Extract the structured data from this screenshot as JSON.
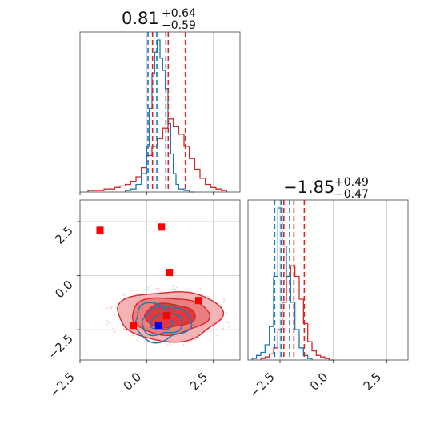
{
  "colors": {
    "red": "#d62728",
    "blue": "#1f77b4",
    "red_fill_outer": "#f4b3b4",
    "red_fill_inner": "#e03a3c",
    "marker_red": "#ff0000",
    "marker_blue": "#0000ff",
    "grid": "#c8c8c8"
  },
  "chart_data": [
    {
      "type": "histogram",
      "panel": "param1-marginal",
      "title_value": "0.81",
      "title_upper": "+0.64",
      "title_lower": "−0.59",
      "xlim": [
        -2.5,
        3.5
      ],
      "grid": true,
      "series": [
        {
          "color": "#d62728",
          "bins": [
            -2.2,
            -2.0,
            -1.8,
            -1.6,
            -1.4,
            -1.2,
            -1.0,
            -0.8,
            -0.6,
            -0.4,
            -0.2,
            0.0,
            0.2,
            0.4,
            0.6,
            0.8,
            1.0,
            1.2,
            1.4,
            1.6,
            1.8,
            2.0,
            2.2,
            2.4,
            2.6,
            2.8
          ],
          "heights": [
            0.01,
            0.01,
            0.01,
            0.02,
            0.02,
            0.03,
            0.04,
            0.05,
            0.07,
            0.1,
            0.16,
            0.24,
            0.3,
            0.35,
            0.42,
            0.48,
            0.43,
            0.38,
            0.3,
            0.22,
            0.15,
            0.09,
            0.05,
            0.03,
            0.02,
            0.01
          ],
          "quantile_lines": [
            0.22,
            0.81,
            1.45
          ]
        },
        {
          "color": "#1f77b4",
          "bins": [
            -0.8,
            -0.6,
            -0.4,
            -0.2,
            0.0,
            0.1,
            0.2,
            0.3,
            0.4,
            0.5,
            0.6,
            0.7,
            0.8,
            0.9,
            1.0,
            1.1,
            1.2,
            1.4,
            1.6
          ],
          "heights": [
            0.01,
            0.02,
            0.05,
            0.12,
            0.3,
            0.55,
            0.78,
            0.92,
            1.0,
            0.88,
            0.8,
            0.68,
            0.45,
            0.25,
            0.12,
            0.05,
            0.02,
            0.01,
            0.0
          ],
          "quantile_lines": [
            0.05,
            0.38,
            0.72
          ]
        }
      ]
    },
    {
      "type": "histogram",
      "panel": "param2-marginal",
      "title_value": "−1.85",
      "title_upper": "+0.49",
      "title_lower": "−0.47",
      "xlim": [
        -4.0,
        3.5
      ],
      "xticks": [
        -2.5,
        0.0,
        2.5
      ],
      "xtick_labels": [
        "−2.5",
        "0.0",
        "2.5"
      ],
      "grid": true,
      "series": [
        {
          "color": "#d62728",
          "bins": [
            -3.4,
            -3.2,
            -3.0,
            -2.8,
            -2.6,
            -2.4,
            -2.2,
            -2.0,
            -1.8,
            -1.6,
            -1.4,
            -1.2,
            -1.0,
            -0.8,
            -0.6,
            -0.4,
            -0.2
          ],
          "heights": [
            0.01,
            0.02,
            0.04,
            0.08,
            0.2,
            0.38,
            0.55,
            0.62,
            0.55,
            0.4,
            0.24,
            0.12,
            0.06,
            0.03,
            0.02,
            0.01,
            0.0
          ],
          "quantile_lines": [
            -2.32,
            -1.85,
            -1.36
          ]
        },
        {
          "color": "#1f77b4",
          "bins": [
            -3.8,
            -3.6,
            -3.4,
            -3.2,
            -3.0,
            -2.8,
            -2.6,
            -2.4,
            -2.2,
            -2.0,
            -1.8,
            -1.6,
            -1.4,
            -1.2
          ],
          "heights": [
            0.01,
            0.03,
            0.05,
            0.1,
            0.22,
            0.55,
            1.0,
            0.75,
            0.55,
            0.38,
            0.2,
            0.08,
            0.03,
            0.01
          ],
          "quantile_lines": [
            -2.75,
            -2.45,
            -2.05
          ]
        }
      ]
    },
    {
      "type": "scatter",
      "panel": "joint",
      "xlim": [
        -2.5,
        3.5
      ],
      "ylim": [
        -3.9,
        3.5
      ],
      "xticks": [
        -2.5,
        0.0,
        2.5
      ],
      "xtick_labels": [
        "−2.5",
        "0.0",
        "2.5"
      ],
      "yticks": [
        -2.5,
        0.0,
        2.5
      ],
      "ytick_labels": [
        "−2.5",
        "0.0",
        "2.5"
      ],
      "grid": true,
      "red_contours": {
        "center": [
          0.85,
          -1.85
        ],
        "levels": [
          {
            "rx": 1.95,
            "ry": 1.15
          },
          {
            "rx": 1.45,
            "ry": 0.85
          },
          {
            "rx": 0.95,
            "ry": 0.55
          }
        ]
      },
      "blue_contours": {
        "center": [
          0.55,
          -2.15
        ],
        "levels": [
          {
            "rx": 1.05,
            "ry": 0.85
          },
          {
            "rx": 0.75,
            "ry": 0.6
          },
          {
            "rx": 0.4,
            "ry": 0.35
          }
        ]
      },
      "red_markers": [
        [
          -1.75,
          2.1
        ],
        [
          0.55,
          2.25
        ],
        [
          0.85,
          0.15
        ],
        [
          1.95,
          -1.15
        ],
        [
          0.75,
          -1.85
        ],
        [
          -0.5,
          -2.3
        ]
      ],
      "blue_markers": [
        [
          0.45,
          -2.3
        ]
      ]
    }
  ]
}
